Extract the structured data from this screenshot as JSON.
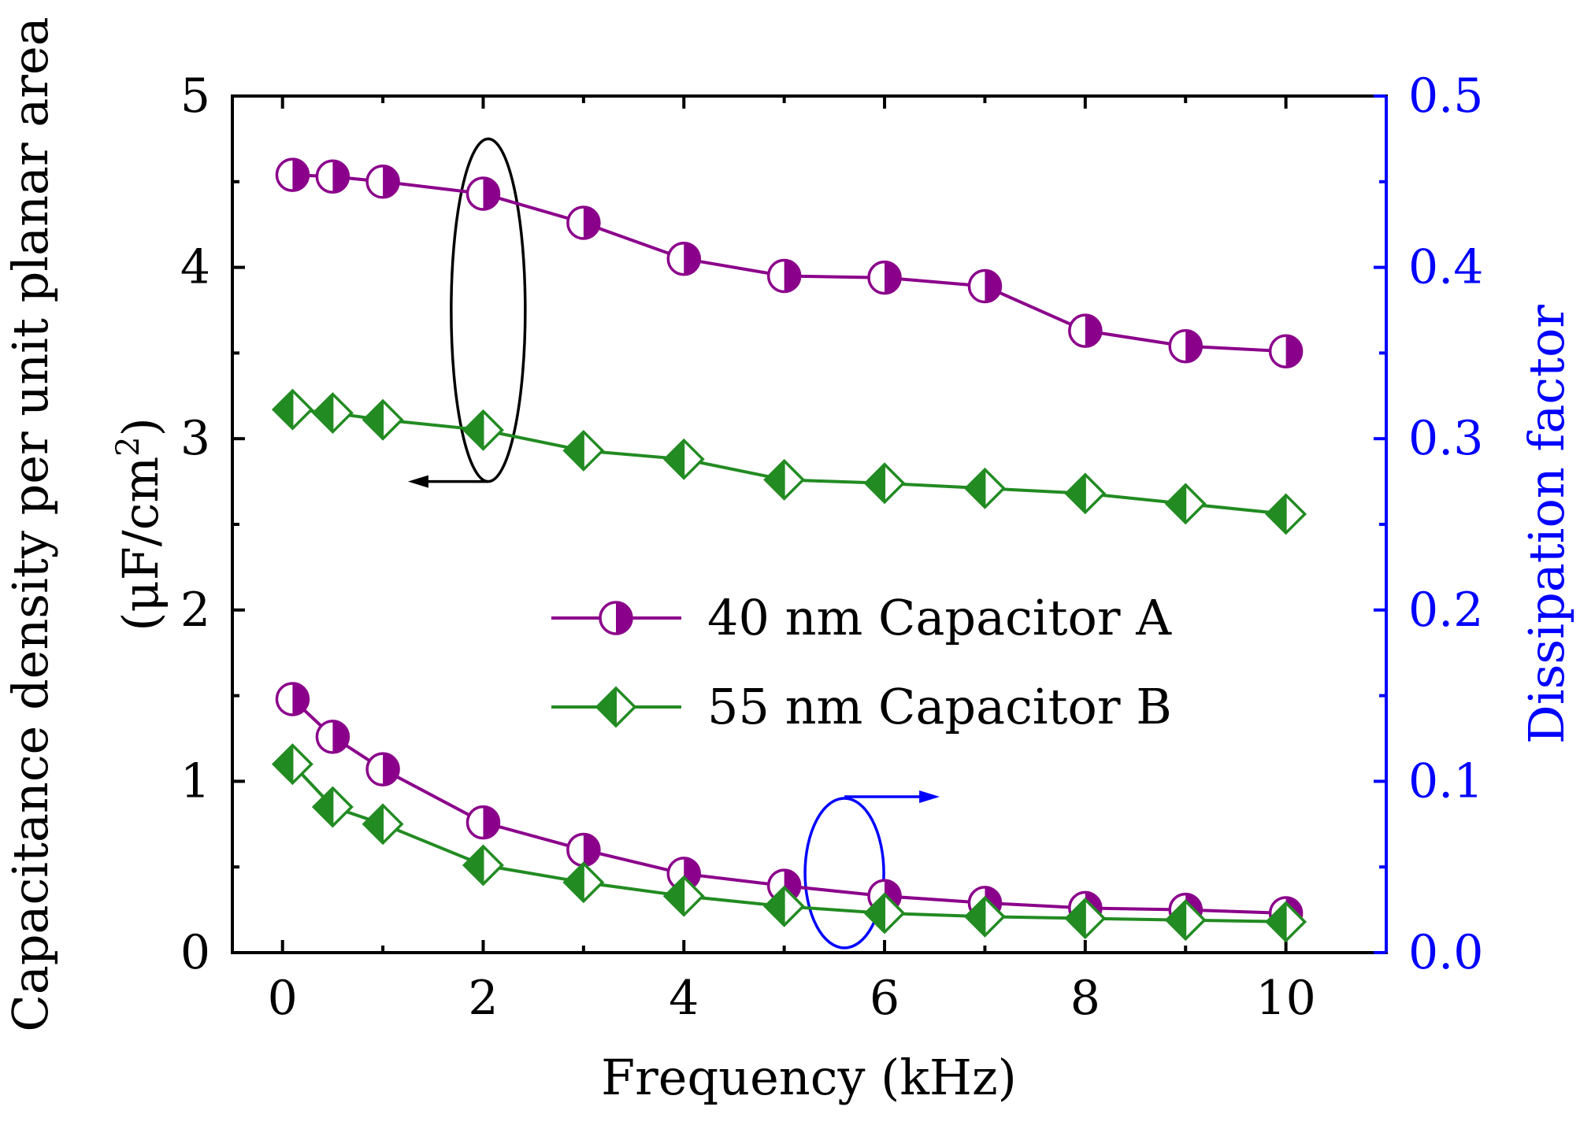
{
  "chart_data": {
    "type": "line",
    "title": "",
    "xlabel": "Frequency (kHz)",
    "ylabel_left_line1": "Capacitance density per unit planar area",
    "ylabel_left_line2_prefix": "(μF/cm",
    "ylabel_left_line2_sup": "2",
    "ylabel_left_line2_suffix": ")",
    "ylabel_right": "Dissipation factor",
    "xlim": [
      -0.5,
      11
    ],
    "ylim_left": [
      0,
      5
    ],
    "ylim_right": [
      0,
      0.5
    ],
    "x_ticks": [
      0,
      2,
      4,
      6,
      8,
      10
    ],
    "x_tick_labels": [
      "0",
      "2",
      "4",
      "6",
      "8",
      "10"
    ],
    "y_left_ticks": [
      0,
      1,
      2,
      3,
      4,
      5
    ],
    "y_left_tick_labels": [
      "0",
      "1",
      "2",
      "3",
      "4",
      "5"
    ],
    "y_right_ticks": [
      0,
      0.1,
      0.2,
      0.3,
      0.4,
      0.5
    ],
    "y_right_tick_labels": [
      "0.0",
      "0.1",
      "0.2",
      "0.3",
      "0.4",
      "0.5"
    ],
    "x": [
      0.1,
      0.5,
      1,
      2,
      3,
      4,
      5,
      6,
      7,
      8,
      9,
      10
    ],
    "series": [
      {
        "name": "40 nm Capacitor A",
        "quantity": "capacitance density",
        "axis": "left",
        "marker": "circle",
        "color": "#8b008b",
        "values": [
          4.54,
          4.53,
          4.5,
          4.43,
          4.26,
          4.05,
          3.95,
          3.94,
          3.89,
          3.63,
          3.54,
          3.51
        ]
      },
      {
        "name": "55 nm Capacitor B",
        "quantity": "capacitance density",
        "axis": "left",
        "marker": "diamond",
        "color": "#228b22",
        "values": [
          3.17,
          3.15,
          3.11,
          3.05,
          2.93,
          2.88,
          2.76,
          2.74,
          2.71,
          2.68,
          2.62,
          2.56
        ]
      },
      {
        "name": "40 nm Capacitor A",
        "quantity": "dissipation factor",
        "axis": "right",
        "marker": "circle",
        "color": "#8b008b",
        "values": [
          0.148,
          0.126,
          0.107,
          0.076,
          0.06,
          0.046,
          0.039,
          0.033,
          0.029,
          0.026,
          0.025,
          0.023
        ]
      },
      {
        "name": "55 nm Capacitor B",
        "quantity": "dissipation factor",
        "axis": "right",
        "marker": "diamond",
        "color": "#228b22",
        "values": [
          0.11,
          0.085,
          0.075,
          0.051,
          0.041,
          0.033,
          0.027,
          0.023,
          0.021,
          0.02,
          0.019,
          0.018
        ]
      }
    ],
    "legend": {
      "position": "center-right",
      "entries": [
        "40 nm Capacitor A",
        "55 nm Capacitor B"
      ]
    },
    "annotations": [
      {
        "kind": "ellipse-arrow",
        "target_axis": "left",
        "arrow_direction": "left",
        "color": "#000000"
      },
      {
        "kind": "ellipse-arrow",
        "target_axis": "right",
        "arrow_direction": "right",
        "color": "#0000ff"
      }
    ]
  }
}
